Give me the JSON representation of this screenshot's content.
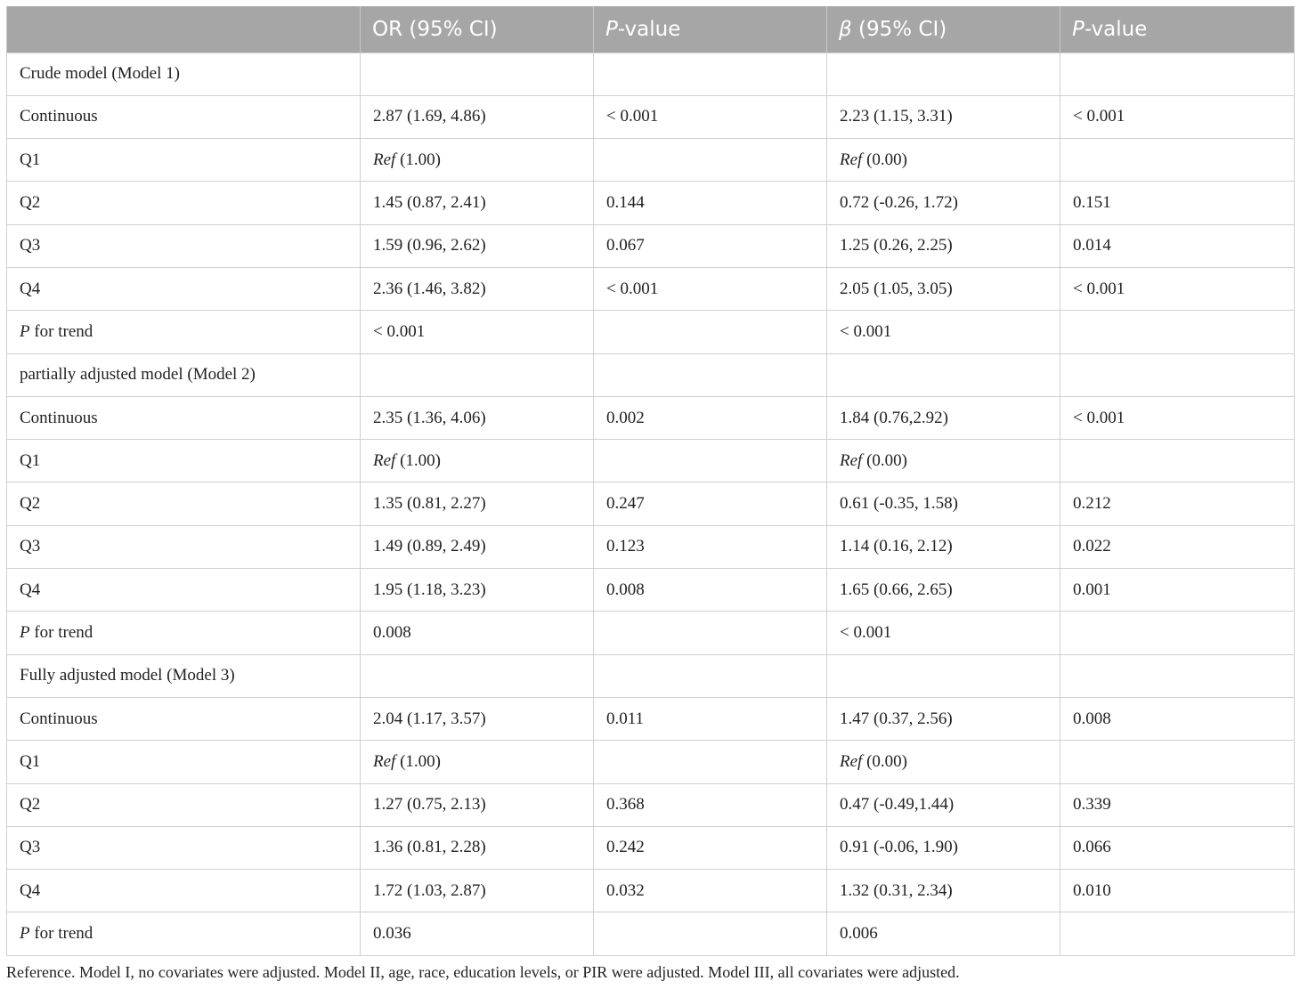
{
  "header": {
    "col0": "",
    "or_ci_label": "OR (95% CI)",
    "p1_prefix": "P",
    "p1_suffix": "-value",
    "beta_symbol": "β",
    "beta_suffix": " (95% CI)",
    "p2_prefix": "P",
    "p2_suffix": "-value"
  },
  "rows": [
    {
      "kind": "section",
      "label": "Crude model (Model 1)"
    },
    {
      "kind": "data",
      "label": "Continuous",
      "or": "2.87 (1.69, 4.86)",
      "p1": "< 0.001",
      "beta": "2.23 (1.15, 3.31)",
      "p2": "< 0.001"
    },
    {
      "kind": "ref",
      "label": "Q1",
      "or_ref": "Ref",
      "or_rest": " (1.00)",
      "beta_ref": "Ref",
      "beta_rest": " (0.00)"
    },
    {
      "kind": "data",
      "label": "Q2",
      "or": "1.45 (0.87, 2.41)",
      "p1": "0.144",
      "beta": "0.72 (-0.26, 1.72)",
      "p2": "0.151"
    },
    {
      "kind": "data",
      "label": "Q3",
      "or": "1.59 (0.96, 2.62)",
      "p1": "0.067",
      "beta": "1.25 (0.26, 2.25)",
      "p2": "0.014"
    },
    {
      "kind": "data",
      "label": "Q4",
      "or": "2.36 (1.46, 3.82)",
      "p1": "< 0.001",
      "beta": "2.05 (1.05, 3.05)",
      "p2": "< 0.001"
    },
    {
      "kind": "trend",
      "label_p": "P",
      "label_rest": " for trend",
      "or": "< 0.001",
      "beta": "< 0.001"
    },
    {
      "kind": "section",
      "label": "partially adjusted model (Model 2)"
    },
    {
      "kind": "data",
      "label": "Continuous",
      "or": "2.35 (1.36, 4.06)",
      "p1": "0.002",
      "beta": "1.84 (0.76,2.92)",
      "p2": "< 0.001"
    },
    {
      "kind": "ref",
      "label": "Q1",
      "or_ref": "Ref",
      "or_rest": " (1.00)",
      "beta_ref": "Ref",
      "beta_rest": " (0.00)"
    },
    {
      "kind": "data",
      "label": "Q2",
      "or": "1.35 (0.81, 2.27)",
      "p1": "0.247",
      "beta": "0.61 (-0.35, 1.58)",
      "p2": "0.212"
    },
    {
      "kind": "data",
      "label": "Q3",
      "or": "1.49 (0.89, 2.49)",
      "p1": "0.123",
      "beta": "1.14 (0.16, 2.12)",
      "p2": "0.022"
    },
    {
      "kind": "data",
      "label": "Q4",
      "or": "1.95 (1.18, 3.23)",
      "p1": "0.008",
      "beta": "1.65 (0.66, 2.65)",
      "p2": "0.001"
    },
    {
      "kind": "trend",
      "label_p": "P",
      "label_rest": " for trend",
      "or": "0.008",
      "beta": "< 0.001"
    },
    {
      "kind": "section",
      "label": "Fully adjusted model (Model 3)"
    },
    {
      "kind": "data",
      "label": "Continuous",
      "or": "2.04 (1.17, 3.57)",
      "p1": "0.011",
      "beta": "1.47 (0.37, 2.56)",
      "p2": "0.008"
    },
    {
      "kind": "ref",
      "label": "Q1",
      "or_ref": "Ref",
      "or_rest": " (1.00)",
      "beta_ref": "Ref",
      "beta_rest": " (0.00)"
    },
    {
      "kind": "data",
      "label": "Q2",
      "or": "1.27 (0.75, 2.13)",
      "p1": "0.368",
      "beta": "0.47 (-0.49,1.44)",
      "p2": "0.339"
    },
    {
      "kind": "data",
      "label": "Q3",
      "or": "1.36 (0.81, 2.28)",
      "p1": "0.242",
      "beta": "0.91 (-0.06, 1.90)",
      "p2": "0.066"
    },
    {
      "kind": "data",
      "label": "Q4",
      "or": "1.72 (1.03, 2.87)",
      "p1": "0.032",
      "beta": "1.32 (0.31, 2.34)",
      "p2": "0.010"
    },
    {
      "kind": "trend",
      "label_p": "P",
      "label_rest": " for trend",
      "or": "0.036",
      "beta": "0.006"
    }
  ],
  "footnote": "Reference. Model I, no covariates were adjusted. Model II, age, race, education levels, or PIR were adjusted. Model III, all covariates were adjusted."
}
